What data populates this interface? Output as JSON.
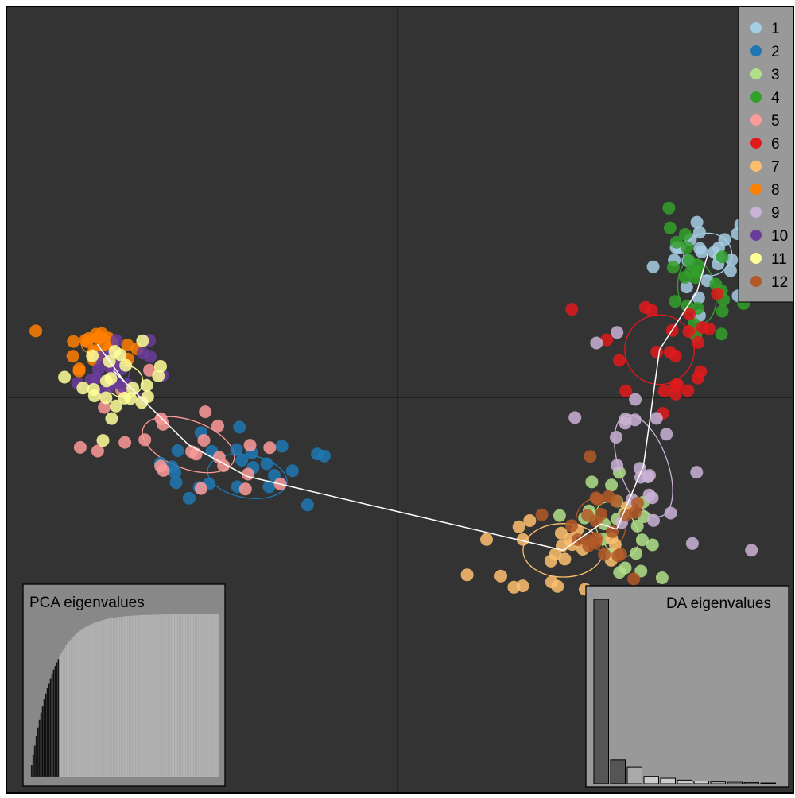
{
  "chart_data": [
    {
      "type": "scatter",
      "title": "",
      "xlabel": "",
      "ylabel": "",
      "xlim": [
        -7.3,
        7.4
      ],
      "ylim": [
        -7.5,
        7.4
      ],
      "axes_lines": {
        "x": 0,
        "y": 0
      },
      "grid": false,
      "legend": "top-right",
      "background": "#333333",
      "series": [
        {
          "name": "1",
          "color": "#A6CEE3",
          "center": [
            5.8,
            2.7
          ],
          "ellipse": {
            "rx": 0.45,
            "ry": 0.4,
            "angle": 0
          }
        },
        {
          "name": "2",
          "color": "#1F78B4",
          "center": [
            -2.8,
            -1.5
          ],
          "ellipse": {
            "rx": 0.75,
            "ry": 0.4,
            "angle": -10
          }
        },
        {
          "name": "3",
          "color": "#B2DF8A",
          "center": [
            4.1,
            -2.5
          ],
          "ellipse": {
            "rx": 0.35,
            "ry": 0.55,
            "angle": 30
          }
        },
        {
          "name": "4",
          "color": "#33A02C",
          "center": [
            5.6,
            2.0
          ],
          "ellipse": {
            "rx": 0.35,
            "ry": 0.6,
            "angle": 10
          }
        },
        {
          "name": "5",
          "color": "#FB9A99",
          "center": [
            -3.9,
            -0.9
          ],
          "ellipse": {
            "rx": 0.9,
            "ry": 0.45,
            "angle": -20
          }
        },
        {
          "name": "6",
          "color": "#E31A1C",
          "center": [
            4.9,
            0.9
          ],
          "ellipse": {
            "rx": 0.65,
            "ry": 0.65,
            "angle": 0
          }
        },
        {
          "name": "7",
          "color": "#FDBF6F",
          "center": [
            3.1,
            -2.9
          ],
          "ellipse": {
            "rx": 0.75,
            "ry": 0.5,
            "angle": 0
          }
        },
        {
          "name": "8",
          "color": "#FF7F00",
          "center": [
            -5.6,
            1.0
          ],
          "ellipse": {
            "rx": 0.3,
            "ry": 0.2,
            "angle": 0
          }
        },
        {
          "name": "9",
          "color": "#CAB2D6",
          "center": [
            4.6,
            -1.3
          ],
          "ellipse": {
            "rx": 0.45,
            "ry": 1.0,
            "angle": 20
          }
        },
        {
          "name": "10",
          "color": "#6A3D9A",
          "center": [
            -5.3,
            0.5
          ],
          "ellipse": {
            "rx": 0.3,
            "ry": 0.3,
            "angle": 0
          }
        },
        {
          "name": "11",
          "color": "#FFFF99",
          "center": [
            -5.1,
            0.3
          ],
          "ellipse": {
            "rx": 0.35,
            "ry": 0.3,
            "angle": 0
          }
        },
        {
          "name": "12",
          "color": "#B15928",
          "center": [
            3.8,
            -2.4
          ],
          "ellipse": {
            "rx": 0.45,
            "ry": 0.5,
            "angle": 30
          }
        }
      ],
      "minimum_spanning_tree": [
        [
          1,
          4
        ],
        [
          4,
          6
        ],
        [
          6,
          9
        ],
        [
          9,
          3
        ],
        [
          3,
          12
        ],
        [
          12,
          7
        ],
        [
          7,
          2
        ],
        [
          2,
          5
        ],
        [
          5,
          10
        ],
        [
          10,
          11
        ],
        [
          11,
          8
        ]
      ],
      "tree_color": "#FFFFFF"
    },
    {
      "type": "bar",
      "title": "PCA eigenvalues",
      "xlabel": "",
      "ylabel": "",
      "n_bars": 120,
      "n_retained": 18,
      "values": [
        1.0,
        0.96,
        0.93,
        0.91,
        0.89,
        0.87,
        0.86,
        0.85,
        0.845,
        0.84,
        0.835,
        0.83,
        0.825,
        0.82,
        0.815,
        0.81,
        0.805,
        0.8
      ],
      "cumulative_note": "",
      "retained_color": "#111111",
      "other_color": "#AAAAAA",
      "panel_color": "#888888"
    },
    {
      "type": "bar",
      "title": "DA eigenvalues",
      "xlabel": "",
      "ylabel": "",
      "values": [
        100,
        13,
        9,
        4,
        3,
        2,
        1.5,
        1,
        0.8,
        0.6,
        0.4
      ],
      "retained_count": 3,
      "retained_colors": [
        "#555555",
        "#555555",
        "#AAAAAA"
      ],
      "other_color": "#CCCCCC",
      "panel_color": "#999999"
    }
  ]
}
